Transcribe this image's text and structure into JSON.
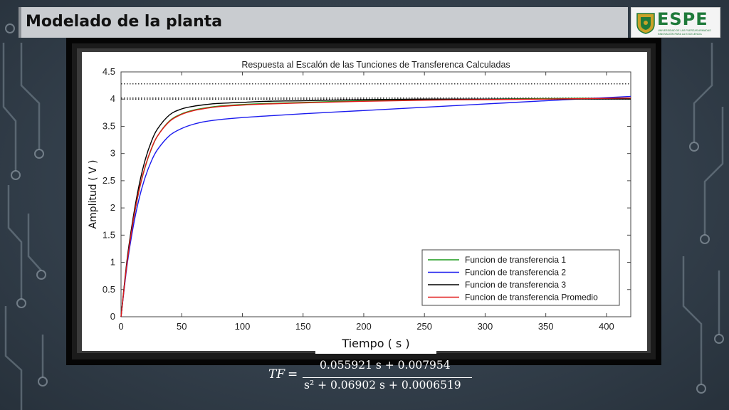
{
  "slide": {
    "title": "Modelado de la planta"
  },
  "logo": {
    "name": "ESPE",
    "line1": "UNIVERSIDAD DE LAS FUERZAS ARMADAS",
    "line2": "INNOVACIÓN PARA LA EXCELENCIA"
  },
  "formula": {
    "lhs": "TF",
    "equals": "=",
    "numerator": "0.055921 s + 0.007954",
    "denominator": "s² + 0.06902 s + 0.0006519"
  },
  "colors": {
    "series1": "#1a9a1a",
    "series2": "#1a1aee",
    "series3": "#000000",
    "series4": "#e11a1a"
  },
  "chart_data": {
    "type": "line",
    "title": "Respuesta al Escalón de las Tunciones de Transferenca Calculadas",
    "xlabel": "Tiempo ( s )",
    "ylabel": "Amplitud ( V )",
    "xlim": [
      0,
      420
    ],
    "ylim": [
      0,
      4.5
    ],
    "xticks": [
      "0",
      "50",
      "100",
      "150",
      "200",
      "250",
      "300",
      "350",
      "400"
    ],
    "yticks": [
      "0",
      "0.5",
      "1",
      "1.5",
      "2",
      "2.5",
      "3",
      "3.5",
      "4",
      "4.5"
    ],
    "grid": false,
    "legend_position": "bottom-right",
    "reference_lines": [
      {
        "style": "dotted",
        "y": 4.28
      },
      {
        "style": "dotted",
        "y": 4.02
      },
      {
        "style": "dotted",
        "y": 4.0
      }
    ],
    "series": [
      {
        "name": "Funcion de transferencia 1",
        "x": [
          0,
          5,
          10,
          15,
          20,
          25,
          30,
          40,
          50,
          60,
          70,
          80,
          100,
          120,
          150,
          200,
          250,
          300,
          350,
          420
        ],
        "y": [
          0,
          1.0,
          1.75,
          2.33,
          2.76,
          3.08,
          3.32,
          3.6,
          3.73,
          3.8,
          3.84,
          3.87,
          3.9,
          3.92,
          3.94,
          3.97,
          3.99,
          4.0,
          4.01,
          4.02
        ]
      },
      {
        "name": "Funcion de transferencia 2",
        "x": [
          0,
          5,
          10,
          15,
          20,
          25,
          30,
          40,
          50,
          60,
          70,
          80,
          100,
          120,
          150,
          200,
          250,
          300,
          350,
          420
        ],
        "y": [
          0,
          0.95,
          1.65,
          2.18,
          2.57,
          2.86,
          3.07,
          3.33,
          3.46,
          3.54,
          3.59,
          3.62,
          3.66,
          3.69,
          3.73,
          3.79,
          3.85,
          3.91,
          3.97,
          4.05
        ]
      },
      {
        "name": "Funcion de transferencia 3",
        "x": [
          0,
          5,
          10,
          15,
          20,
          25,
          30,
          40,
          50,
          60,
          70,
          80,
          100,
          120,
          150,
          200,
          250,
          300,
          350,
          420
        ],
        "y": [
          0,
          1.05,
          1.82,
          2.43,
          2.89,
          3.22,
          3.45,
          3.71,
          3.82,
          3.87,
          3.9,
          3.92,
          3.94,
          3.96,
          3.97,
          3.99,
          4.0,
          4.0,
          4.0,
          4.0
        ]
      },
      {
        "name": "Funcion de transferencia Promedio",
        "x": [
          0,
          5,
          10,
          15,
          20,
          25,
          30,
          40,
          50,
          60,
          70,
          80,
          100,
          120,
          150,
          200,
          250,
          300,
          350,
          420
        ],
        "y": [
          0,
          1.0,
          1.76,
          2.34,
          2.77,
          3.09,
          3.32,
          3.59,
          3.72,
          3.79,
          3.83,
          3.86,
          3.89,
          3.91,
          3.93,
          3.96,
          3.98,
          3.99,
          4.0,
          4.02
        ]
      }
    ]
  }
}
